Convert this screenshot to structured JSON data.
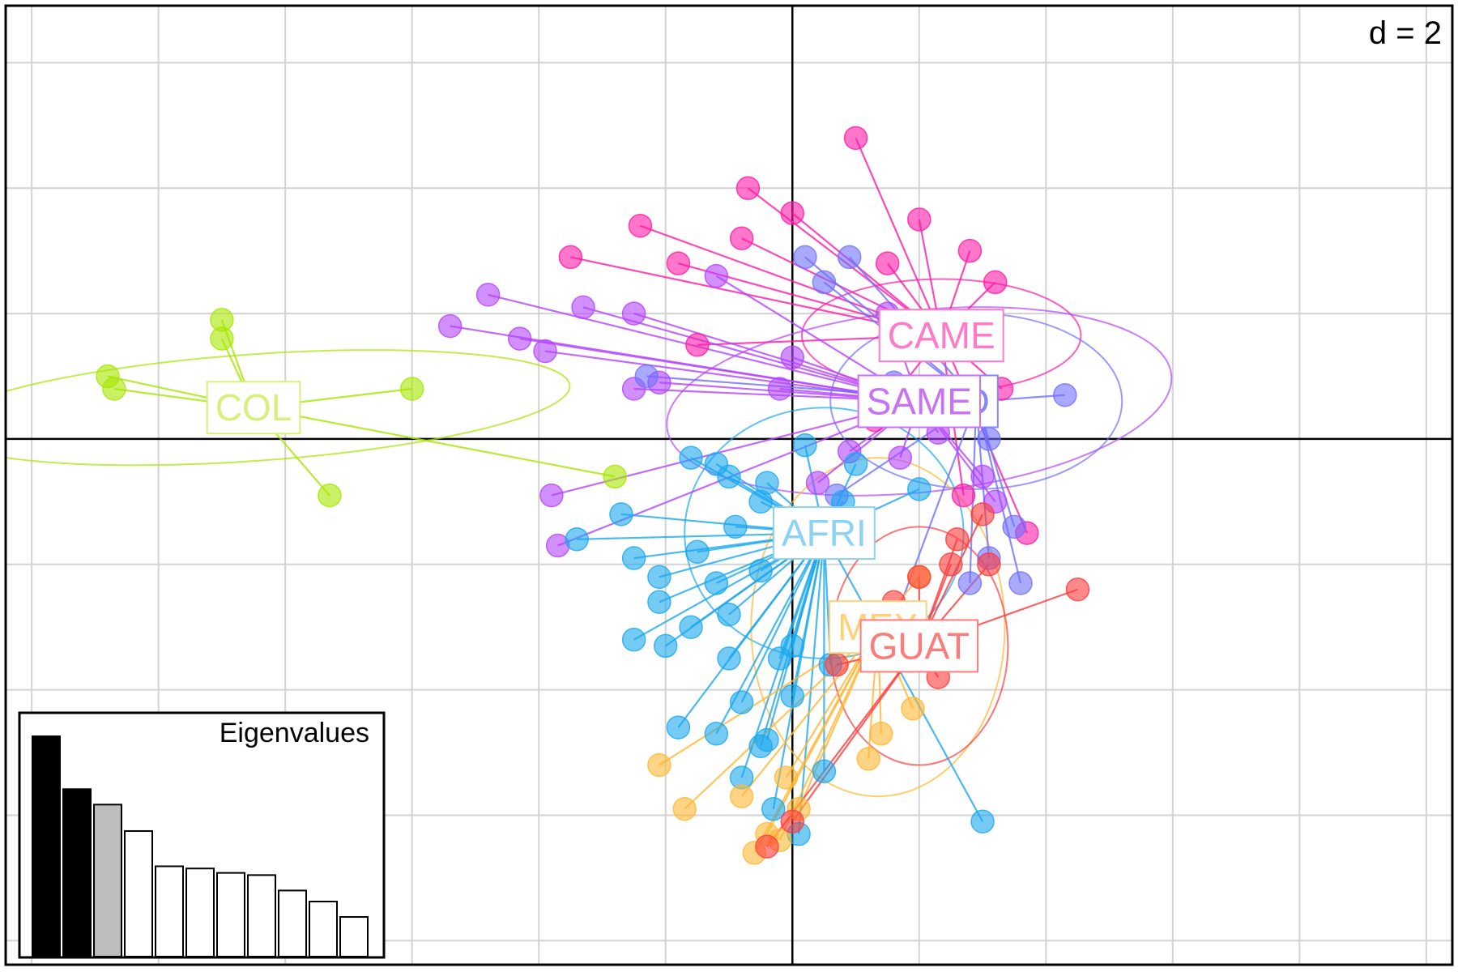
{
  "chart_data": {
    "type": "scatter",
    "scale_label": "d = 2",
    "grid": true,
    "xlim": [
      -12.5,
      10.5
    ],
    "ylim": [
      -8.5,
      7.0
    ],
    "groups": [
      {
        "name": "COL",
        "color": "#a6e600",
        "labelColor": "#d7f07a",
        "center": [
          -8.5,
          0.5
        ],
        "ellipse": {
          "rx": 5.0,
          "ry": 0.85,
          "angle": -4
        },
        "points": [
          [
            -10.8,
            1.0
          ],
          [
            -10.7,
            0.8
          ],
          [
            -9.0,
            1.6
          ],
          [
            -9.0,
            1.9
          ],
          [
            -6.0,
            0.8
          ],
          [
            -7.3,
            -0.9
          ],
          [
            -2.8,
            -0.6
          ]
        ]
      },
      {
        "name": "CAME",
        "color": "#ff1aa6",
        "labelColor": "#ff7ac8",
        "center": [
          2.35,
          1.65
        ],
        "ellipse": {
          "rx": 2.2,
          "ry": 0.9,
          "angle": 0
        },
        "points": [
          [
            -0.7,
            4.0
          ],
          [
            0.0,
            3.6
          ],
          [
            -2.4,
            3.4
          ],
          [
            -1.8,
            2.8
          ],
          [
            -0.8,
            3.2
          ],
          [
            1.0,
            4.8
          ],
          [
            2.0,
            3.5
          ],
          [
            2.8,
            3.0
          ],
          [
            -3.5,
            2.9
          ],
          [
            -1.5,
            1.5
          ],
          [
            1.5,
            2.8
          ],
          [
            3.2,
            2.5
          ],
          [
            2.9,
            1.5
          ],
          [
            3.3,
            0.8
          ],
          [
            2.7,
            -0.9
          ],
          [
            3.7,
            -1.5
          ],
          [
            1.3,
            0.3
          ]
        ]
      },
      {
        "name": "SAME",
        "color": "#b344ff",
        "labelColor": "#c972f5",
        "center": [
          2.0,
          0.6
        ],
        "ellipse": {
          "rx": 4.0,
          "ry": 1.45,
          "angle": -6
        },
        "points": [
          [
            -4.8,
            2.3
          ],
          [
            -2.5,
            2.0
          ],
          [
            -4.3,
            1.6
          ],
          [
            -3.3,
            2.1
          ],
          [
            -3.9,
            1.4
          ],
          [
            -5.4,
            1.8
          ],
          [
            -2.5,
            0.8
          ],
          [
            -2.1,
            0.9
          ],
          [
            -3.8,
            -0.9
          ],
          [
            -3.7,
            -1.7
          ],
          [
            0.0,
            1.3
          ],
          [
            1.5,
            2.0
          ],
          [
            -1.2,
            2.6
          ],
          [
            1.7,
            -0.3
          ],
          [
            2.3,
            0.1
          ],
          [
            3.0,
            -0.6
          ],
          [
            3.2,
            -1.0
          ],
          [
            -0.2,
            0.8
          ],
          [
            0.9,
            -0.2
          ],
          [
            0.4,
            -0.7
          ]
        ]
      },
      {
        "name": "D",
        "color": "#6f6fff",
        "labelColor": "#8585ff",
        "center": [
          2.9,
          0.6
        ],
        "ellipse": {
          "rx": 2.3,
          "ry": 1.4,
          "angle": 0
        },
        "points": [
          [
            0.2,
            2.9
          ],
          [
            0.9,
            2.9
          ],
          [
            0.5,
            2.5
          ],
          [
            1.6,
            0.9
          ],
          [
            3.1,
            0.0
          ],
          [
            4.3,
            0.7
          ],
          [
            3.5,
            -1.4
          ],
          [
            3.1,
            -1.9
          ],
          [
            3.6,
            -2.3
          ],
          [
            2.8,
            -2.3
          ],
          [
            1.5,
            -3.2
          ],
          [
            -2.3,
            1.0
          ],
          [
            0.7,
            -0.9
          ]
        ]
      },
      {
        "name": "AFRI",
        "color": "#1aa8ee",
        "labelColor": "#8ad3f4",
        "center": [
          0.5,
          -1.5
        ],
        "ellipse": {
          "rx": 2.2,
          "ry": 2.0,
          "angle": 0
        },
        "points": [
          [
            -3.4,
            -1.6
          ],
          [
            -2.7,
            -1.2
          ],
          [
            -1.5,
            -1.8
          ],
          [
            -2.5,
            -1.9
          ],
          [
            -2.1,
            -2.2
          ],
          [
            -1.2,
            -2.3
          ],
          [
            -1.6,
            -3.0
          ],
          [
            -1.0,
            -3.5
          ],
          [
            -2.0,
            -3.3
          ],
          [
            -2.5,
            -3.2
          ],
          [
            -2.1,
            -2.6
          ],
          [
            -1.0,
            -2.8
          ],
          [
            -0.5,
            -2.1
          ],
          [
            -0.2,
            -3.5
          ],
          [
            0.0,
            -4.1
          ],
          [
            -0.8,
            -4.2
          ],
          [
            -1.2,
            -4.7
          ],
          [
            -0.5,
            -4.9
          ],
          [
            -0.4,
            -4.8
          ],
          [
            -1.8,
            -4.6
          ],
          [
            -0.8,
            -5.4
          ],
          [
            -0.3,
            -5.9
          ],
          [
            0.1,
            -6.3
          ],
          [
            0.5,
            -5.3
          ],
          [
            0.0,
            -3.3
          ],
          [
            0.6,
            -3.6
          ],
          [
            -0.9,
            -1.4
          ],
          [
            -0.4,
            -0.7
          ],
          [
            -1.2,
            -0.4
          ],
          [
            0.2,
            -0.1
          ],
          [
            1.0,
            -0.4
          ],
          [
            0.4,
            -1.3
          ],
          [
            0.8,
            -1.0
          ],
          [
            2.0,
            -0.8
          ],
          [
            3.0,
            -6.1
          ],
          [
            -1.0,
            -0.6
          ],
          [
            -1.6,
            -0.3
          ],
          [
            -0.5,
            -1.0
          ]
        ]
      },
      {
        "name": "MEX",
        "color": "#ffb733",
        "labelColor": "#ffd27a",
        "center": [
          1.35,
          -3.0
        ],
        "ellipse": {
          "rx": 2.0,
          "ry": 2.7,
          "angle": 0
        },
        "points": [
          [
            -0.8,
            -5.7
          ],
          [
            -0.4,
            -6.3
          ],
          [
            -0.2,
            -6.4
          ],
          [
            -0.6,
            -6.6
          ],
          [
            0.1,
            -5.9
          ],
          [
            -0.1,
            -5.4
          ],
          [
            1.2,
            -5.1
          ],
          [
            1.4,
            -4.7
          ],
          [
            1.9,
            -4.3
          ],
          [
            -2.1,
            -5.2
          ],
          [
            -1.7,
            -5.9
          ],
          [
            2.0,
            -2.2
          ]
        ]
      },
      {
        "name": "GUAT",
        "color": "#ff3a3a",
        "labelColor": "#ff7a7a",
        "center": [
          2.0,
          -3.3
        ],
        "ellipse": {
          "rx": 1.4,
          "ry": 1.9,
          "angle": 0
        },
        "points": [
          [
            2.5,
            -2.0
          ],
          [
            3.0,
            -1.2
          ],
          [
            2.6,
            -1.6
          ],
          [
            2.0,
            -2.2
          ],
          [
            1.6,
            -2.6
          ],
          [
            0.7,
            -3.6
          ],
          [
            -0.4,
            -6.5
          ],
          [
            0.0,
            -6.1
          ],
          [
            3.1,
            -2.0
          ],
          [
            2.3,
            -3.8
          ],
          [
            4.5,
            -2.4
          ]
        ]
      }
    ],
    "label_order": [
      "COL",
      "MEX",
      "GUAT",
      "AFRI",
      "D",
      "SAME",
      "CAME"
    ],
    "eigen_title": "Eigenvalues",
    "eigenvalues": [
      1.0,
      0.76,
      0.69,
      0.57,
      0.41,
      0.4,
      0.38,
      0.37,
      0.3,
      0.25,
      0.18
    ],
    "eigen_shading": [
      "#000000",
      "#000000",
      "#bdbdbd",
      "#ffffff",
      "#ffffff",
      "#ffffff",
      "#ffffff",
      "#ffffff",
      "#ffffff",
      "#ffffff",
      "#ffffff"
    ]
  }
}
